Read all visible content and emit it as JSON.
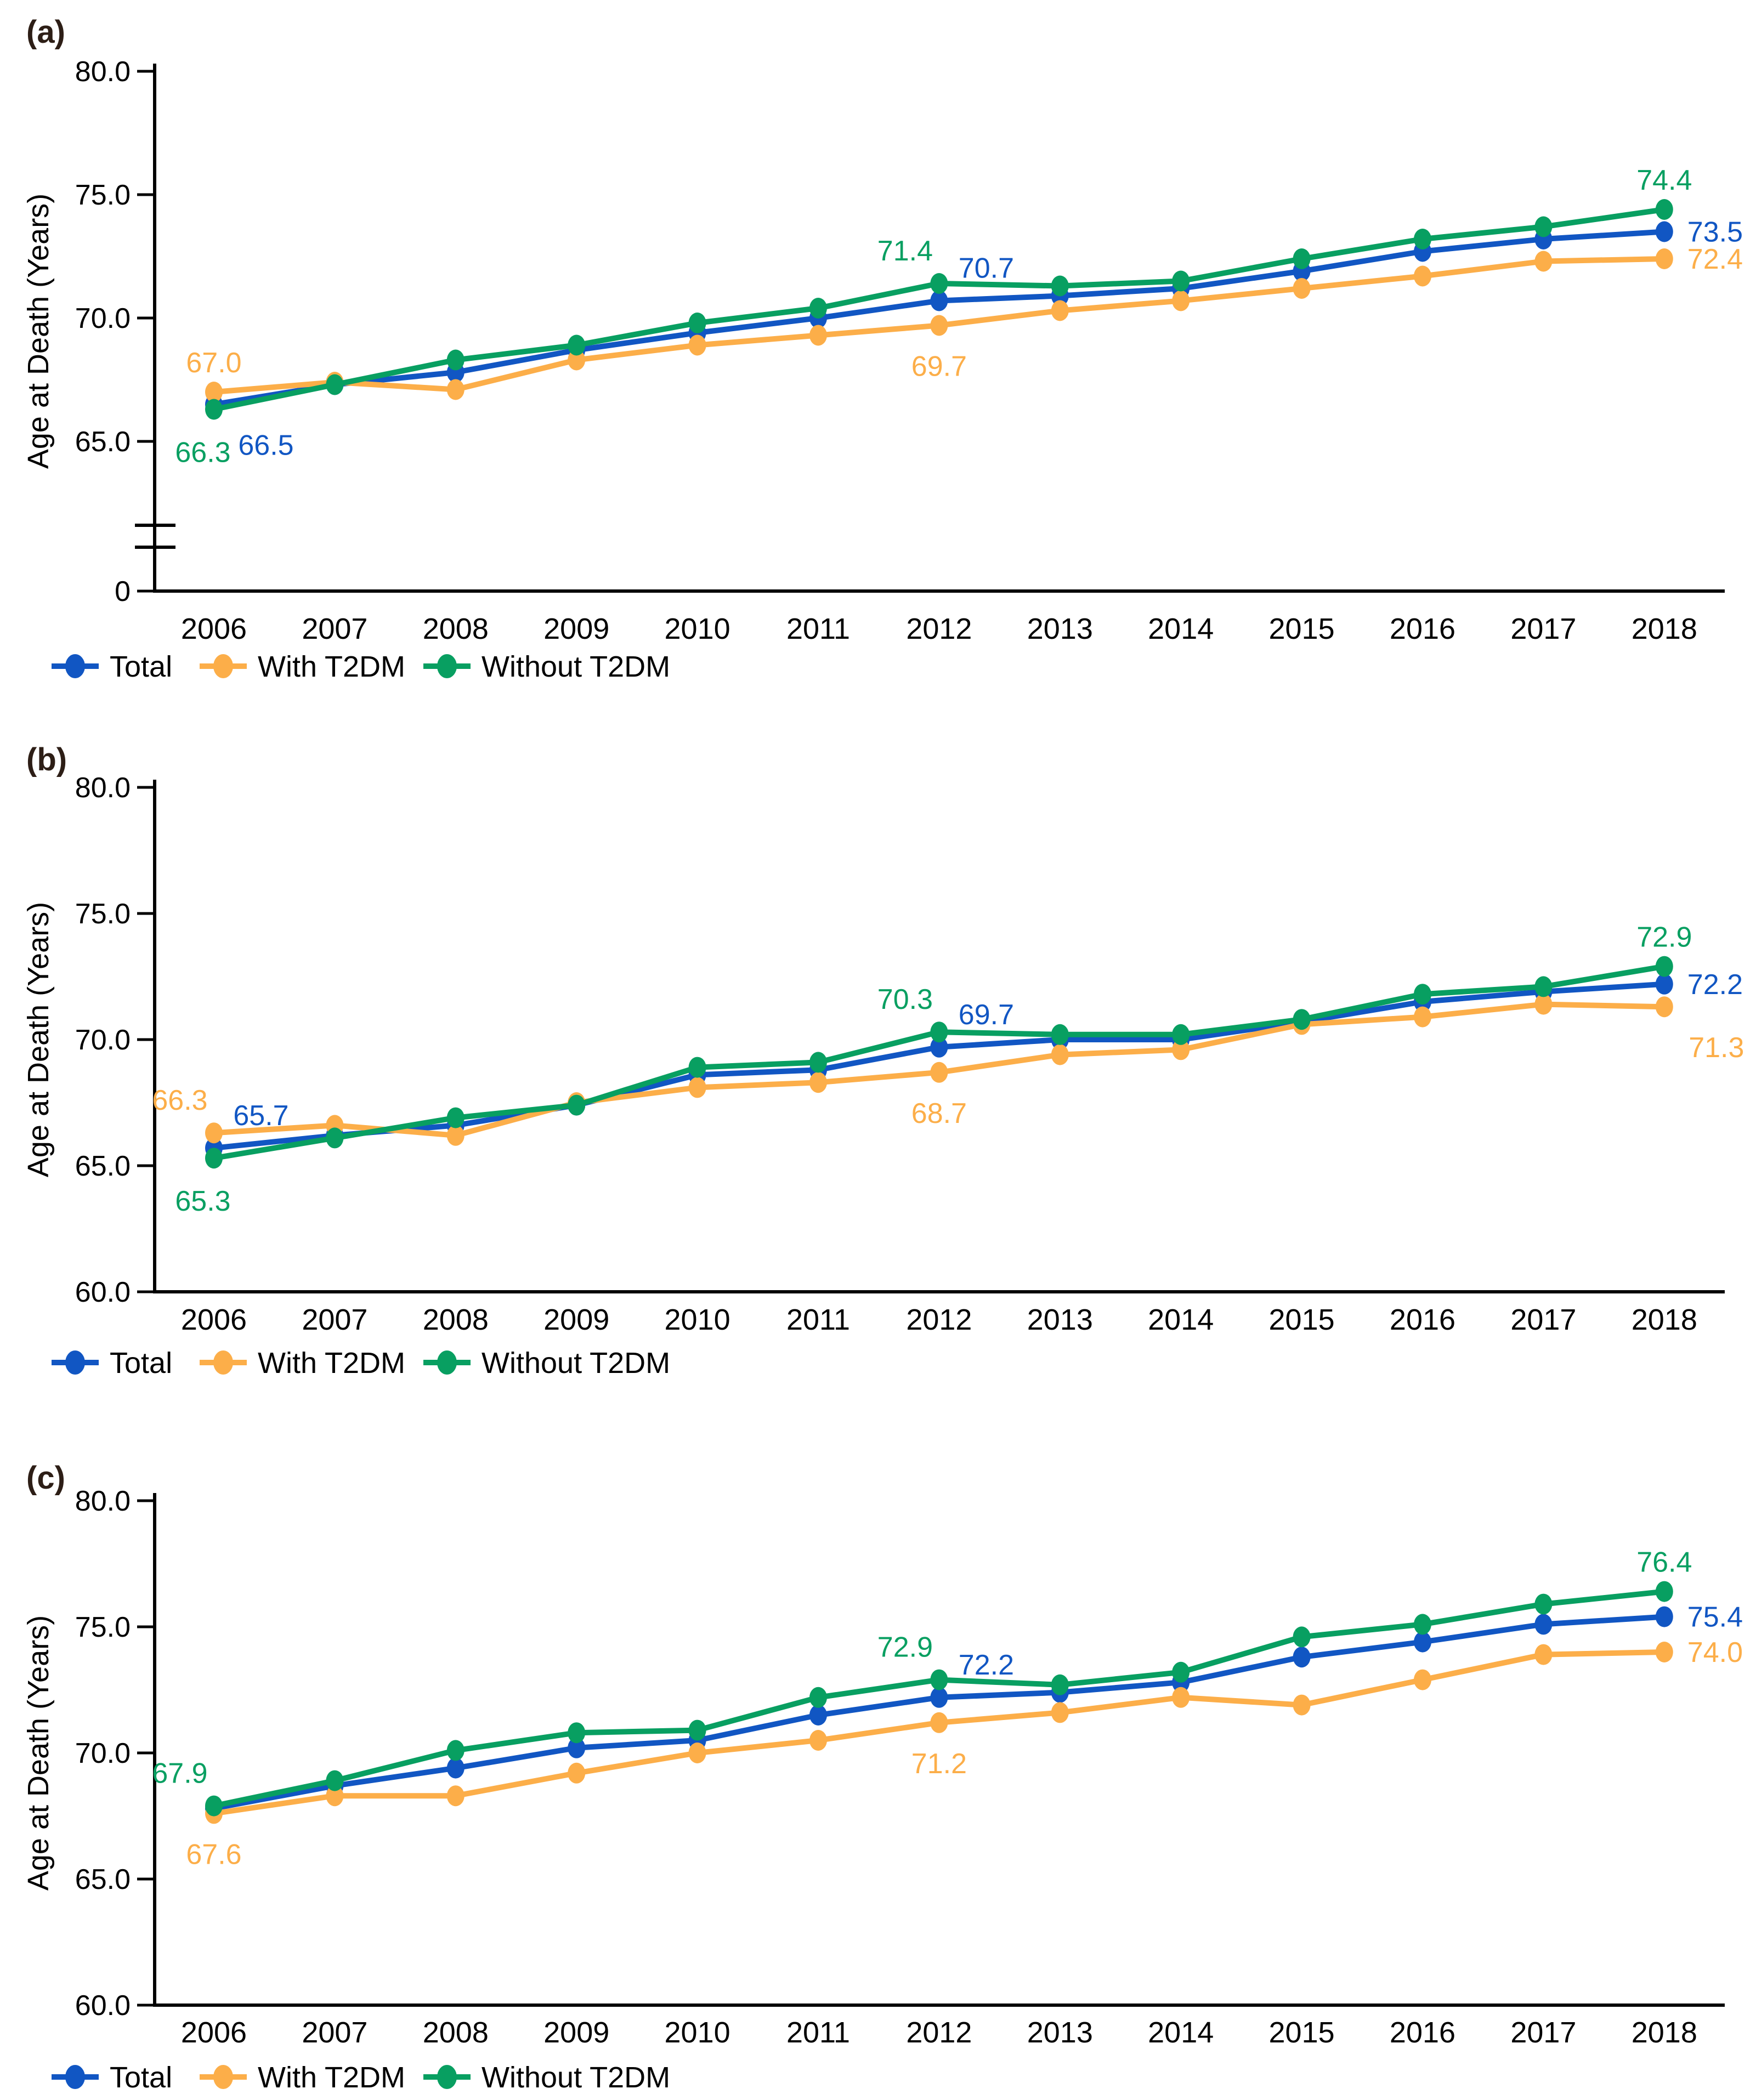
{
  "figure": {
    "y_axis_title": "Age at Death (Years)",
    "background_color": "#ffffff",
    "axis_color": "#000000",
    "text_color": "#000000",
    "panel_letter_color": "#2d1e16",
    "series_colors": {
      "total": "#1156c3",
      "with_t2dm": "#fcae49",
      "without_t2dm": "#089f61"
    }
  },
  "legend": {
    "items": [
      {
        "key": "total",
        "label": "Total"
      },
      {
        "key": "with_t2dm",
        "label": "With T2DM"
      },
      {
        "key": "without_t2dm",
        "label": "Without T2DM"
      }
    ]
  },
  "chart_data": [
    {
      "type": "line",
      "panel_label": "(a)",
      "ylabel": "Age at Death (Years)",
      "xlabel": "",
      "x": [
        2006,
        2007,
        2008,
        2009,
        2010,
        2011,
        2012,
        2013,
        2014,
        2015,
        2016,
        2017,
        2018
      ],
      "ylim": [
        65,
        80
      ],
      "axis_break_to_zero": true,
      "grid": false,
      "legend_position": "bottom",
      "y_ticks": [
        {
          "label": "80.0",
          "value": 80
        },
        {
          "label": "75.0",
          "value": 75
        },
        {
          "label": "70.0",
          "value": 70
        },
        {
          "label": "65.0",
          "value": 65
        },
        {
          "label": "0",
          "value": null
        }
      ],
      "series": [
        {
          "key": "total",
          "name": "Total",
          "values": [
            66.5,
            67.3,
            67.8,
            68.7,
            69.4,
            70.0,
            70.7,
            70.9,
            71.2,
            71.9,
            72.7,
            73.2,
            73.5
          ]
        },
        {
          "key": "with_t2dm",
          "name": "With T2DM",
          "values": [
            67.0,
            67.4,
            67.1,
            68.3,
            68.9,
            69.3,
            69.7,
            70.3,
            70.7,
            71.2,
            71.7,
            72.3,
            72.4
          ]
        },
        {
          "key": "without_t2dm",
          "name": "Without T2DM",
          "values": [
            66.3,
            67.3,
            68.3,
            68.9,
            69.8,
            70.4,
            71.4,
            71.3,
            71.5,
            72.4,
            73.2,
            73.7,
            74.4
          ]
        }
      ],
      "point_labels": [
        {
          "series": "with_t2dm",
          "year": 2006,
          "text": "67.0",
          "placement": "above"
        },
        {
          "series": "total",
          "year": 2006,
          "text": "66.5",
          "placement": "below-right"
        },
        {
          "series": "without_t2dm",
          "year": 2006,
          "text": "66.3",
          "placement": "below-left"
        },
        {
          "series": "without_t2dm",
          "year": 2012,
          "text": "71.4",
          "placement": "above-left"
        },
        {
          "series": "total",
          "year": 2012,
          "text": "70.7",
          "placement": "above-right"
        },
        {
          "series": "with_t2dm",
          "year": 2012,
          "text": "69.7",
          "placement": "below"
        },
        {
          "series": "without_t2dm",
          "year": 2018,
          "text": "74.4",
          "placement": "above"
        },
        {
          "series": "total",
          "year": 2018,
          "text": "73.5",
          "placement": "right"
        },
        {
          "series": "with_t2dm",
          "year": 2018,
          "text": "72.4",
          "placement": "right"
        }
      ]
    },
    {
      "type": "line",
      "panel_label": "(b)",
      "ylabel": "Age at Death (Years)",
      "xlabel": "",
      "x": [
        2006,
        2007,
        2008,
        2009,
        2010,
        2011,
        2012,
        2013,
        2014,
        2015,
        2016,
        2017,
        2018
      ],
      "ylim": [
        60,
        80
      ],
      "axis_break_to_zero": false,
      "grid": false,
      "legend_position": "bottom",
      "y_ticks": [
        {
          "label": "80.0",
          "value": 80
        },
        {
          "label": "75.0",
          "value": 75
        },
        {
          "label": "70.0",
          "value": 70
        },
        {
          "label": "65.0",
          "value": 65
        },
        {
          "label": "60.0",
          "value": 60
        }
      ],
      "series": [
        {
          "key": "total",
          "name": "Total",
          "values": [
            65.7,
            66.2,
            66.6,
            67.4,
            68.6,
            68.8,
            69.7,
            70.0,
            70.0,
            70.7,
            71.5,
            71.9,
            72.2
          ]
        },
        {
          "key": "with_t2dm",
          "name": "With T2DM",
          "values": [
            66.3,
            66.6,
            66.2,
            67.5,
            68.1,
            68.3,
            68.7,
            69.4,
            69.6,
            70.6,
            70.9,
            71.4,
            71.3
          ]
        },
        {
          "key": "without_t2dm",
          "name": "Without T2DM",
          "values": [
            65.3,
            66.1,
            66.9,
            67.4,
            68.9,
            69.1,
            70.3,
            70.2,
            70.2,
            70.8,
            71.8,
            72.1,
            72.9
          ]
        }
      ],
      "point_labels": [
        {
          "series": "with_t2dm",
          "year": 2006,
          "text": "66.3",
          "placement": "above-left"
        },
        {
          "series": "total",
          "year": 2006,
          "text": "65.7",
          "placement": "above-right"
        },
        {
          "series": "without_t2dm",
          "year": 2006,
          "text": "65.3",
          "placement": "below-left"
        },
        {
          "series": "without_t2dm",
          "year": 2012,
          "text": "70.3",
          "placement": "above-left"
        },
        {
          "series": "total",
          "year": 2012,
          "text": "69.7",
          "placement": "above-right"
        },
        {
          "series": "with_t2dm",
          "year": 2012,
          "text": "68.7",
          "placement": "below"
        },
        {
          "series": "without_t2dm",
          "year": 2018,
          "text": "72.9",
          "placement": "above"
        },
        {
          "series": "total",
          "year": 2018,
          "text": "72.2",
          "placement": "right"
        },
        {
          "series": "with_t2dm",
          "year": 2018,
          "text": "71.3",
          "placement": "below-right"
        }
      ]
    },
    {
      "type": "line",
      "panel_label": "(c)",
      "ylabel": "Age at Death (Years)",
      "xlabel": "",
      "x": [
        2006,
        2007,
        2008,
        2009,
        2010,
        2011,
        2012,
        2013,
        2014,
        2015,
        2016,
        2017,
        2018
      ],
      "ylim": [
        60,
        80
      ],
      "axis_break_to_zero": false,
      "grid": false,
      "legend_position": "bottom",
      "y_ticks": [
        {
          "label": "80.0",
          "value": 80
        },
        {
          "label": "75.0",
          "value": 75
        },
        {
          "label": "70.0",
          "value": 70
        },
        {
          "label": "65.0",
          "value": 65
        },
        {
          "label": "60.0",
          "value": 60
        }
      ],
      "series": [
        {
          "key": "total",
          "name": "Total",
          "values": [
            67.8,
            68.7,
            69.4,
            70.2,
            70.5,
            71.5,
            72.2,
            72.4,
            72.8,
            73.8,
            74.4,
            75.1,
            75.4
          ]
        },
        {
          "key": "with_t2dm",
          "name": "With T2DM",
          "values": [
            67.6,
            68.3,
            68.3,
            69.2,
            70.0,
            70.5,
            71.2,
            71.6,
            72.2,
            71.9,
            72.9,
            73.9,
            74.0
          ]
        },
        {
          "key": "without_t2dm",
          "name": "Without T2DM",
          "values": [
            67.9,
            68.9,
            70.1,
            70.8,
            70.9,
            72.2,
            72.9,
            72.7,
            73.2,
            74.6,
            75.1,
            75.9,
            76.4
          ]
        }
      ],
      "point_labels": [
        {
          "series": "without_t2dm",
          "year": 2006,
          "text": "67.9",
          "placement": "above-left"
        },
        {
          "series": "with_t2dm",
          "year": 2006,
          "text": "67.6",
          "placement": "below"
        },
        {
          "series": "without_t2dm",
          "year": 2012,
          "text": "72.9",
          "placement": "above-left"
        },
        {
          "series": "total",
          "year": 2012,
          "text": "72.2",
          "placement": "above-right"
        },
        {
          "series": "with_t2dm",
          "year": 2012,
          "text": "71.2",
          "placement": "below"
        },
        {
          "series": "without_t2dm",
          "year": 2018,
          "text": "76.4",
          "placement": "above"
        },
        {
          "series": "total",
          "year": 2018,
          "text": "75.4",
          "placement": "right"
        },
        {
          "series": "with_t2dm",
          "year": 2018,
          "text": "74.0",
          "placement": "right"
        }
      ]
    }
  ]
}
